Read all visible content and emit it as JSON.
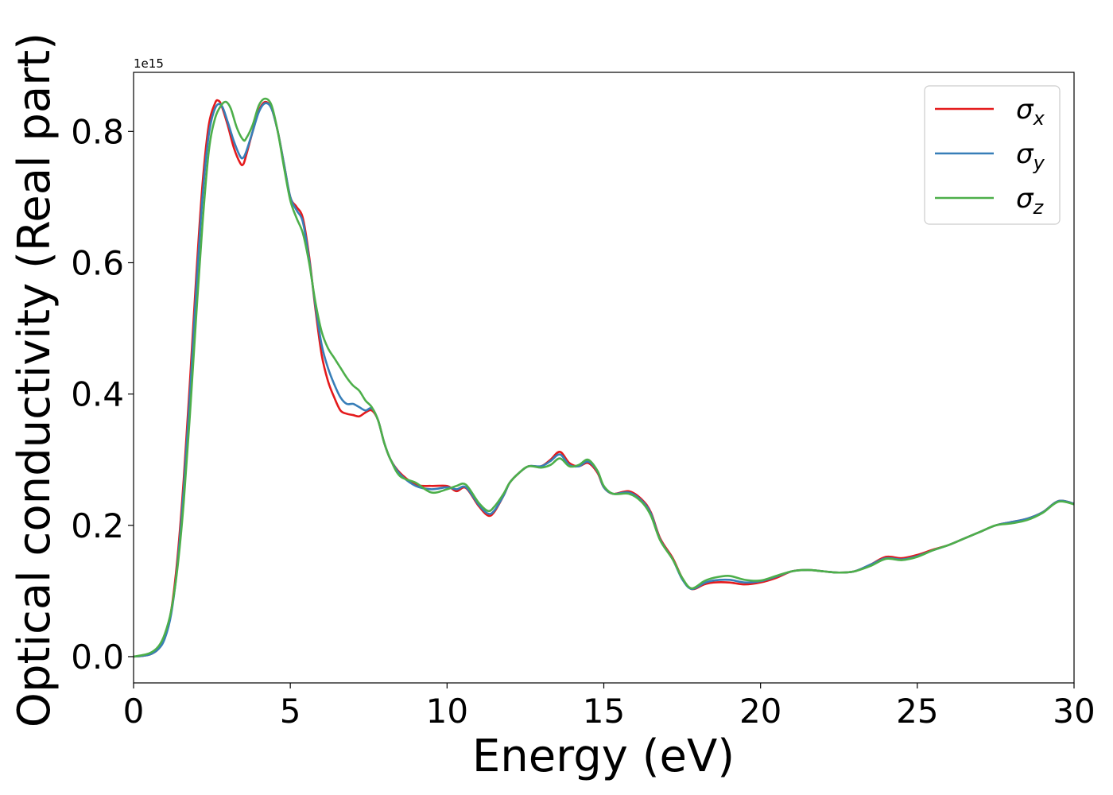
{
  "chart_data": {
    "type": "line",
    "xlabel": "Energy (eV)",
    "ylabel": "Optical conductivity (Real part)",
    "y_offset_text": "1e15",
    "xlim": [
      0,
      30
    ],
    "ylim": [
      -0.04,
      0.89
    ],
    "xticks": [
      0,
      5,
      10,
      15,
      20,
      25,
      30
    ],
    "xtick_labels": [
      "0",
      "5",
      "10",
      "15",
      "20",
      "25",
      "30"
    ],
    "yticks": [
      0.0,
      0.2,
      0.4,
      0.6,
      0.8
    ],
    "ytick_labels": [
      "0.0",
      "0.2",
      "0.4",
      "0.6",
      "0.8"
    ],
    "grid": false,
    "legend_position": "top-right",
    "colors": {
      "sigma_x": "#e41a1c",
      "sigma_y": "#377eb8",
      "sigma_z": "#4daf4a"
    },
    "series": [
      {
        "name": "σx",
        "symbol": "σ",
        "subscript": "x",
        "color": "#e41a1c",
        "x": [
          0,
          0.5,
          0.8,
          1.0,
          1.2,
          1.4,
          1.6,
          1.8,
          2.0,
          2.2,
          2.4,
          2.6,
          2.7,
          2.8,
          3.0,
          3.2,
          3.4,
          3.5,
          3.6,
          3.8,
          4.0,
          4.2,
          4.4,
          4.6,
          4.8,
          5.0,
          5.2,
          5.4,
          5.6,
          5.8,
          6.0,
          6.2,
          6.4,
          6.6,
          6.8,
          7.0,
          7.2,
          7.4,
          7.6,
          7.8,
          8.0,
          8.2,
          8.5,
          9.0,
          9.5,
          10.0,
          10.3,
          10.6,
          11.0,
          11.3,
          11.5,
          11.8,
          12.0,
          12.3,
          12.6,
          13.0,
          13.3,
          13.6,
          13.9,
          14.2,
          14.5,
          14.8,
          15.0,
          15.3,
          15.8,
          16.2,
          16.5,
          16.8,
          17.2,
          17.5,
          17.8,
          18.2,
          18.5,
          19.0,
          19.5,
          20.0,
          20.5,
          21.0,
          21.5,
          22.0,
          22.5,
          23.0,
          23.5,
          24.0,
          24.5,
          25.0,
          25.5,
          26.0,
          26.5,
          27.0,
          27.5,
          28.0,
          28.5,
          29.0,
          29.5,
          30.0
        ],
        "y": [
          0.0,
          0.003,
          0.012,
          0.03,
          0.07,
          0.15,
          0.27,
          0.42,
          0.58,
          0.72,
          0.81,
          0.843,
          0.847,
          0.84,
          0.81,
          0.775,
          0.752,
          0.75,
          0.765,
          0.8,
          0.832,
          0.845,
          0.835,
          0.8,
          0.75,
          0.7,
          0.685,
          0.668,
          0.61,
          0.53,
          0.46,
          0.42,
          0.395,
          0.375,
          0.37,
          0.368,
          0.366,
          0.372,
          0.375,
          0.36,
          0.325,
          0.3,
          0.28,
          0.262,
          0.26,
          0.26,
          0.252,
          0.257,
          0.23,
          0.215,
          0.22,
          0.245,
          0.265,
          0.28,
          0.29,
          0.29,
          0.3,
          0.312,
          0.295,
          0.29,
          0.295,
          0.28,
          0.258,
          0.248,
          0.252,
          0.24,
          0.22,
          0.18,
          0.15,
          0.12,
          0.103,
          0.11,
          0.113,
          0.113,
          0.11,
          0.113,
          0.12,
          0.13,
          0.132,
          0.13,
          0.128,
          0.13,
          0.14,
          0.152,
          0.15,
          0.155,
          0.163,
          0.17,
          0.18,
          0.19,
          0.2,
          0.205,
          0.21,
          0.22,
          0.237,
          0.233
        ]
      },
      {
        "name": "σy",
        "symbol": "σ",
        "subscript": "y",
        "color": "#377eb8",
        "x": [
          0,
          0.5,
          0.8,
          1.0,
          1.2,
          1.4,
          1.6,
          1.8,
          2.0,
          2.2,
          2.4,
          2.6,
          2.8,
          3.0,
          3.2,
          3.4,
          3.5,
          3.6,
          3.8,
          4.0,
          4.2,
          4.4,
          4.6,
          4.8,
          5.0,
          5.2,
          5.4,
          5.6,
          5.8,
          6.0,
          6.2,
          6.4,
          6.6,
          6.8,
          7.0,
          7.2,
          7.4,
          7.6,
          7.8,
          8.0,
          8.2,
          8.5,
          9.0,
          9.5,
          10.0,
          10.3,
          10.6,
          11.0,
          11.3,
          11.5,
          11.8,
          12.0,
          12.3,
          12.6,
          13.0,
          13.3,
          13.6,
          13.9,
          14.2,
          14.5,
          14.8,
          15.0,
          15.3,
          15.8,
          16.2,
          16.5,
          16.8,
          17.2,
          17.5,
          17.8,
          18.2,
          18.5,
          19.0,
          19.5,
          20.0,
          20.5,
          21.0,
          21.5,
          22.0,
          22.5,
          23.0,
          23.5,
          24.0,
          24.5,
          25.0,
          25.5,
          26.0,
          26.5,
          27.0,
          27.5,
          28.0,
          28.5,
          29.0,
          29.5,
          30.0
        ],
        "y": [
          0.0,
          0.003,
          0.012,
          0.028,
          0.065,
          0.14,
          0.255,
          0.4,
          0.56,
          0.7,
          0.795,
          0.835,
          0.84,
          0.815,
          0.785,
          0.762,
          0.76,
          0.77,
          0.8,
          0.83,
          0.843,
          0.835,
          0.8,
          0.75,
          0.7,
          0.68,
          0.662,
          0.605,
          0.535,
          0.475,
          0.44,
          0.415,
          0.395,
          0.385,
          0.385,
          0.38,
          0.375,
          0.378,
          0.36,
          0.325,
          0.3,
          0.278,
          0.26,
          0.255,
          0.258,
          0.255,
          0.258,
          0.232,
          0.218,
          0.222,
          0.245,
          0.265,
          0.28,
          0.29,
          0.29,
          0.298,
          0.308,
          0.292,
          0.29,
          0.297,
          0.282,
          0.258,
          0.248,
          0.25,
          0.238,
          0.218,
          0.178,
          0.148,
          0.118,
          0.103,
          0.112,
          0.116,
          0.117,
          0.113,
          0.115,
          0.122,
          0.13,
          0.132,
          0.13,
          0.128,
          0.13,
          0.14,
          0.15,
          0.148,
          0.153,
          0.162,
          0.17,
          0.18,
          0.19,
          0.2,
          0.205,
          0.21,
          0.22,
          0.237,
          0.233
        ]
      },
      {
        "name": "σz",
        "symbol": "σ",
        "subscript": "z",
        "color": "#4daf4a",
        "x": [
          0,
          0.5,
          0.8,
          1.0,
          1.2,
          1.4,
          1.6,
          1.8,
          2.0,
          2.2,
          2.4,
          2.6,
          2.8,
          2.95,
          3.1,
          3.3,
          3.5,
          3.6,
          3.8,
          4.0,
          4.2,
          4.4,
          4.6,
          4.8,
          5.0,
          5.2,
          5.4,
          5.6,
          5.8,
          6.0,
          6.2,
          6.4,
          6.6,
          6.8,
          7.0,
          7.2,
          7.4,
          7.6,
          7.8,
          8.0,
          8.2,
          8.5,
          9.0,
          9.5,
          10.0,
          10.3,
          10.6,
          11.0,
          11.3,
          11.5,
          11.8,
          12.0,
          12.3,
          12.6,
          13.0,
          13.3,
          13.6,
          13.9,
          14.2,
          14.5,
          14.8,
          15.0,
          15.3,
          15.8,
          16.2,
          16.5,
          16.8,
          17.2,
          17.5,
          17.8,
          18.2,
          18.5,
          19.0,
          19.5,
          20.0,
          20.5,
          21.0,
          21.5,
          22.0,
          22.5,
          23.0,
          23.5,
          24.0,
          24.5,
          25.0,
          25.5,
          26.0,
          26.5,
          27.0,
          27.5,
          28.0,
          28.5,
          29.0,
          29.5,
          30.0
        ],
        "y": [
          0.0,
          0.005,
          0.016,
          0.035,
          0.07,
          0.135,
          0.235,
          0.37,
          0.52,
          0.66,
          0.77,
          0.82,
          0.84,
          0.845,
          0.835,
          0.805,
          0.787,
          0.79,
          0.81,
          0.84,
          0.85,
          0.84,
          0.8,
          0.745,
          0.695,
          0.668,
          0.645,
          0.6,
          0.54,
          0.495,
          0.47,
          0.455,
          0.44,
          0.425,
          0.413,
          0.405,
          0.39,
          0.38,
          0.36,
          0.325,
          0.3,
          0.275,
          0.265,
          0.25,
          0.255,
          0.26,
          0.262,
          0.235,
          0.222,
          0.228,
          0.248,
          0.265,
          0.28,
          0.29,
          0.288,
          0.292,
          0.302,
          0.29,
          0.292,
          0.3,
          0.283,
          0.26,
          0.248,
          0.248,
          0.236,
          0.215,
          0.177,
          0.148,
          0.12,
          0.104,
          0.115,
          0.12,
          0.123,
          0.117,
          0.116,
          0.123,
          0.13,
          0.132,
          0.13,
          0.128,
          0.13,
          0.138,
          0.149,
          0.147,
          0.152,
          0.162,
          0.17,
          0.18,
          0.19,
          0.2,
          0.203,
          0.208,
          0.219,
          0.236,
          0.232
        ]
      }
    ]
  }
}
